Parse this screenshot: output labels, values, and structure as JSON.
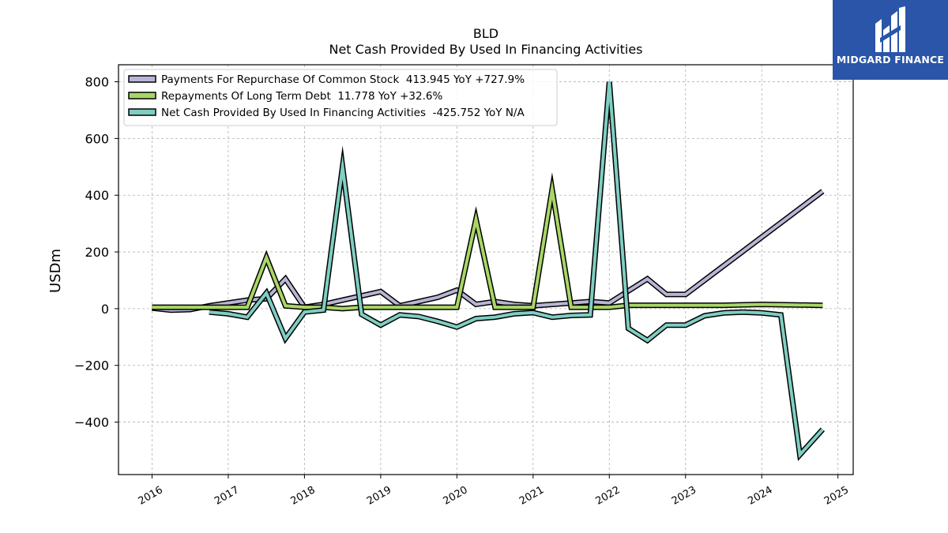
{
  "brand": {
    "name": "MIDGARD FINANCE",
    "bg_color": "#2a55a8"
  },
  "chart_data": {
    "type": "line",
    "title": "BLD",
    "subtitle": "Net Cash Provided By Used In Financing Activities",
    "xlabel": "",
    "ylabel": "USDm",
    "x_ticks": [
      "2016",
      "2017",
      "2018",
      "2019",
      "2020",
      "2021",
      "2022",
      "2023",
      "2024",
      "2025"
    ],
    "y_ticks": [
      "−400",
      "−200",
      "0",
      "200",
      "400",
      "600",
      "800"
    ],
    "xlim": [
      2015.56,
      2025.2
    ],
    "ylim": [
      -585,
      860
    ],
    "grid": true,
    "legend_position": "top-left",
    "series": [
      {
        "name": "Payments For Repurchase Of Common Stock  413.945 YoY +727.9%",
        "color": "#b8b5d6",
        "points": [
          [
            2016.0,
            2
          ],
          [
            2016.25,
            -5
          ],
          [
            2016.5,
            -3
          ],
          [
            2016.75,
            10
          ],
          [
            2017.0,
            20
          ],
          [
            2017.25,
            30
          ],
          [
            2017.5,
            35
          ],
          [
            2017.75,
            105
          ],
          [
            2018.0,
            5
          ],
          [
            2018.25,
            15
          ],
          [
            2018.5,
            30
          ],
          [
            2018.75,
            45
          ],
          [
            2019.0,
            60
          ],
          [
            2019.25,
            10
          ],
          [
            2019.5,
            25
          ],
          [
            2019.75,
            40
          ],
          [
            2020.0,
            65
          ],
          [
            2020.25,
            15
          ],
          [
            2020.5,
            25
          ],
          [
            2020.75,
            15
          ],
          [
            2021.0,
            10
          ],
          [
            2021.25,
            15
          ],
          [
            2021.5,
            20
          ],
          [
            2021.75,
            25
          ],
          [
            2022.0,
            20
          ],
          [
            2022.5,
            105
          ],
          [
            2022.75,
            50
          ],
          [
            2023.0,
            50
          ],
          [
            2024.8,
            413.945
          ]
        ]
      },
      {
        "name": "Repayments Of Long Term Debt  11.778 YoY +32.6%",
        "color": "#a9d666",
        "points": [
          [
            2016.0,
            5
          ],
          [
            2016.25,
            5
          ],
          [
            2016.5,
            5
          ],
          [
            2016.75,
            5
          ],
          [
            2017.0,
            5
          ],
          [
            2017.25,
            5
          ],
          [
            2017.5,
            180
          ],
          [
            2017.75,
            10
          ],
          [
            2018.0,
            5
          ],
          [
            2018.25,
            5
          ],
          [
            2018.5,
            0
          ],
          [
            2018.75,
            5
          ],
          [
            2019.0,
            5
          ],
          [
            2019.25,
            5
          ],
          [
            2019.5,
            5
          ],
          [
            2019.75,
            5
          ],
          [
            2020.0,
            5
          ],
          [
            2020.25,
            315
          ],
          [
            2020.5,
            5
          ],
          [
            2020.75,
            5
          ],
          [
            2021.0,
            5
          ],
          [
            2021.25,
            420
          ],
          [
            2021.5,
            5
          ],
          [
            2021.75,
            5
          ],
          [
            2022.0,
            5
          ],
          [
            2022.25,
            12
          ],
          [
            2022.5,
            12
          ],
          [
            2022.75,
            12
          ],
          [
            2023.0,
            12
          ],
          [
            2023.5,
            12
          ],
          [
            2024.0,
            15
          ],
          [
            2024.8,
            11.778
          ]
        ]
      },
      {
        "name": "Net Cash Provided By Used In Financing Activities  -425.752 YoY N/A",
        "color": "#7fcec2",
        "points": [
          [
            2016.75,
            -12
          ],
          [
            2017.0,
            -18
          ],
          [
            2017.25,
            -30
          ],
          [
            2017.5,
            55
          ],
          [
            2017.75,
            -105
          ],
          [
            2018.0,
            -12
          ],
          [
            2018.25,
            -5
          ],
          [
            2018.5,
            500
          ],
          [
            2018.75,
            -20
          ],
          [
            2019.0,
            -58
          ],
          [
            2019.25,
            -22
          ],
          [
            2019.5,
            -28
          ],
          [
            2019.75,
            -45
          ],
          [
            2020.0,
            -65
          ],
          [
            2020.25,
            -35
          ],
          [
            2020.5,
            -30
          ],
          [
            2020.75,
            -18
          ],
          [
            2021.0,
            -14
          ],
          [
            2021.25,
            -30
          ],
          [
            2021.5,
            -24
          ],
          [
            2021.75,
            -22
          ],
          [
            2022.0,
            800
          ],
          [
            2022.25,
            -70
          ],
          [
            2022.5,
            -112
          ],
          [
            2022.75,
            -58
          ],
          [
            2023.0,
            -58
          ],
          [
            2023.25,
            -25
          ],
          [
            2023.5,
            -15
          ],
          [
            2023.75,
            -12
          ],
          [
            2024.0,
            -15
          ],
          [
            2024.25,
            -22
          ],
          [
            2024.5,
            -515
          ],
          [
            2024.8,
            -425.752
          ]
        ]
      }
    ]
  }
}
